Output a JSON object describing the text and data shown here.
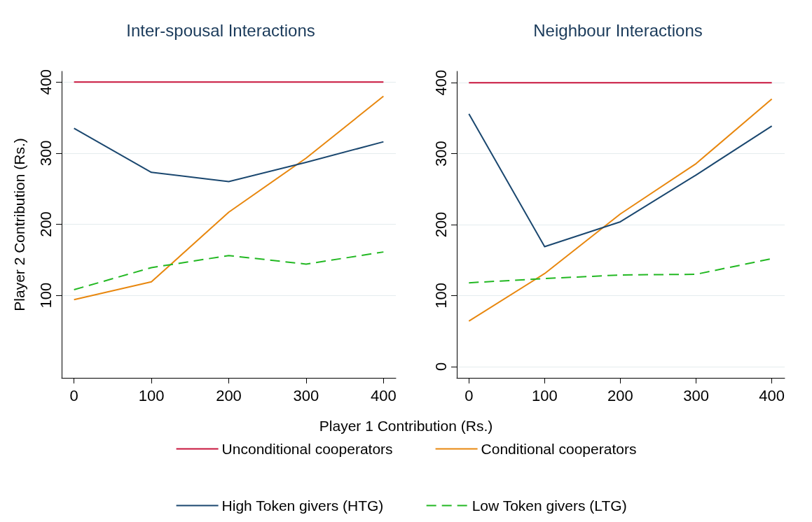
{
  "chart_data": [
    {
      "type": "line",
      "title": "Inter-spousal Interactions",
      "xlabel": "Player 1 Contribution (Rs.)",
      "ylabel": "Player 2 Contribution (Rs.)",
      "x": [
        0,
        100,
        200,
        300,
        400
      ],
      "xlim": [
        -16,
        416
      ],
      "xticks": [
        0,
        100,
        200,
        300,
        400
      ],
      "ylim": [
        -16,
        415
      ],
      "yticks": [
        100,
        200,
        300,
        400
      ],
      "grid": "y",
      "legend": "bottom",
      "marker": "none",
      "series": [
        {
          "name": "Unconditional cooperators",
          "color": "#c8143c",
          "values": [
            400,
            400,
            400,
            400,
            400
          ]
        },
        {
          "name": "Conditional cooperators",
          "color": "#e8870e",
          "values": [
            94,
            119,
            217,
            293,
            380
          ]
        },
        {
          "name": "High Token givers (HTG)",
          "color": "#1a476f",
          "values": [
            335,
            273,
            260,
            287,
            316
          ]
        },
        {
          "name": "Low Token givers (LTG)",
          "color": "#22b822",
          "line_style": "dashed",
          "values": [
            108,
            139,
            156,
            144,
            161
          ]
        }
      ]
    },
    {
      "type": "line",
      "title": "Neighbour Interactions",
      "x": [
        0,
        100,
        200,
        300,
        400
      ],
      "xlim": [
        -16,
        417
      ],
      "xticks": [
        0,
        100,
        200,
        300,
        400
      ],
      "ylim": [
        -16,
        416
      ],
      "yticks": [
        0,
        100,
        200,
        300,
        400
      ],
      "grid": "y",
      "legend": false,
      "marker": "none",
      "series": [
        {
          "color": "#c8143c",
          "values": [
            400,
            400,
            400,
            400,
            400
          ]
        },
        {
          "color": "#e8870e",
          "values": [
            64,
            131,
            215,
            286,
            377
          ]
        },
        {
          "color": "#1a476f",
          "values": [
            356,
            169,
            204,
            270,
            339
          ]
        },
        {
          "color": "#22b822",
          "line_style": "dashed",
          "values": [
            118,
            124,
            129,
            130,
            152
          ]
        }
      ]
    }
  ]
}
